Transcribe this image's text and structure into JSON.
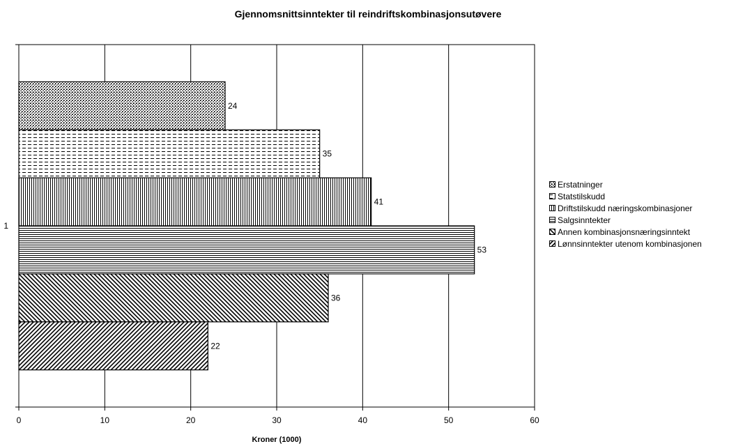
{
  "chart_data": {
    "type": "bar",
    "orientation": "horizontal",
    "title": "Gjennomsnittsinntekter til reindriftskombinasjonsutøvere",
    "xlabel": "Kroner (1000)",
    "ylabel": "",
    "categories": [
      "1"
    ],
    "xlim": [
      0,
      60
    ],
    "xticks": [
      0,
      10,
      20,
      30,
      40,
      50,
      60
    ],
    "grid": "vertical",
    "legend_position": "right",
    "series": [
      {
        "name": "Erstatninger",
        "values": [
          24
        ],
        "pattern": "dots"
      },
      {
        "name": "Statstilskudd",
        "values": [
          35
        ],
        "pattern": "horizontal-dashes"
      },
      {
        "name": "Driftstilskudd næringskombinasjoner",
        "values": [
          41
        ],
        "pattern": "vertical-lines"
      },
      {
        "name": "Salgsinntekter",
        "values": [
          53
        ],
        "pattern": "horizontal-lines"
      },
      {
        "name": "Annen kombinasjonsnæringsinntekt",
        "values": [
          36
        ],
        "pattern": "backslash-diagonal"
      },
      {
        "name": "Lønnsinntekter utenom kombinasjonen",
        "values": [
          22
        ],
        "pattern": "forward-diagonal"
      }
    ]
  }
}
